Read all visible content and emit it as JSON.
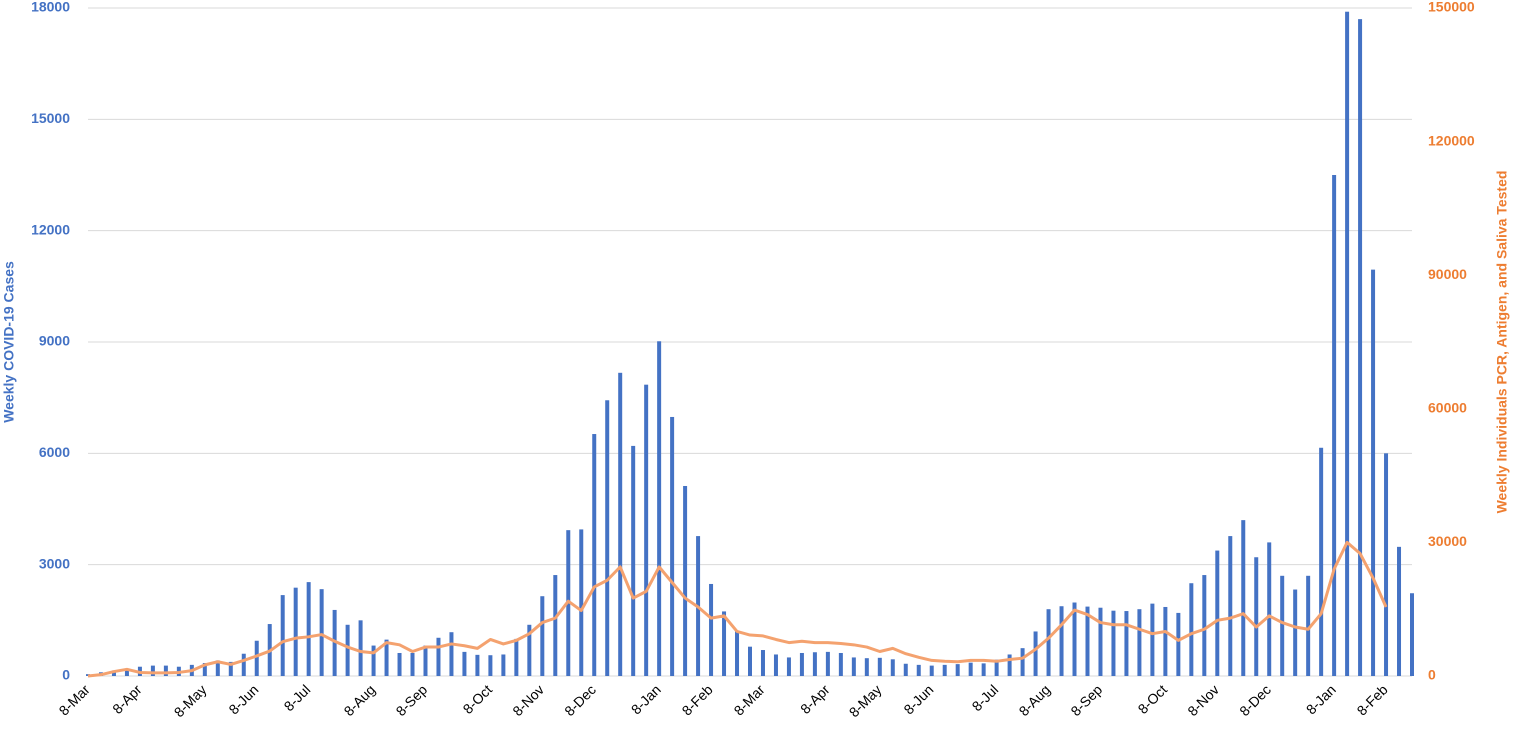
{
  "chart_data": {
    "type": "bar_line",
    "ylabel": "Weekly COVID-19 Cases",
    "y2label": "Weekly Individuals PCR, Antigen, and Saliva Tested",
    "categories": [
      "8-Mar",
      null,
      null,
      null,
      "8-Apr",
      null,
      null,
      null,
      null,
      "8-May",
      null,
      null,
      null,
      "8-Jun",
      null,
      null,
      null,
      "8-Jul",
      null,
      null,
      null,
      null,
      "8-Aug",
      null,
      null,
      null,
      "8-Sep",
      null,
      null,
      null,
      null,
      "8-Oct",
      null,
      null,
      null,
      "8-Nov",
      null,
      null,
      null,
      "8-Dec",
      null,
      null,
      null,
      null,
      "8-Jan",
      null,
      null,
      null,
      "8-Feb",
      null,
      null,
      null,
      "8-Mar",
      null,
      null,
      null,
      null,
      "8-Apr",
      null,
      null,
      null,
      "8-May",
      null,
      null,
      null,
      "8-Jun",
      null,
      null,
      null,
      null,
      "8-Jul",
      null,
      null,
      null,
      "8-Aug",
      null,
      null,
      null,
      "8-Sep",
      null,
      null,
      null,
      null,
      "8-Oct",
      null,
      null,
      null,
      "8-Nov",
      null,
      null,
      null,
      "8-Dec",
      null,
      null,
      null,
      null,
      "8-Jan",
      null,
      null,
      null,
      "8-Feb",
      null,
      null
    ],
    "series": [
      {
        "type": "bar",
        "color": "#4472c4",
        "values": [
          50,
          100,
          150,
          200,
          250,
          280,
          280,
          250,
          300,
          350,
          420,
          380,
          600,
          950,
          1400,
          2180,
          2380,
          2530,
          2340,
          1780,
          1380,
          1500,
          820,
          980,
          620,
          620,
          820,
          1030,
          1180,
          650,
          570,
          560,
          580,
          1000,
          1380,
          2150,
          2720,
          3930,
          3950,
          6520,
          7430,
          8170,
          6200,
          7850,
          9020,
          6980,
          5120,
          3770,
          2480,
          1740,
          1200,
          790,
          700,
          580,
          500,
          620,
          640,
          650,
          620,
          500,
          480,
          490,
          450,
          330,
          300,
          280,
          300,
          320,
          360,
          340,
          440,
          580,
          750,
          1200,
          1800,
          1880,
          1980,
          1870,
          1840,
          1760,
          1750,
          1800,
          1950,
          1860,
          1700,
          2500,
          2720,
          3380,
          3770,
          4200,
          3200,
          3600,
          2700,
          2330,
          2700,
          6150,
          13500,
          17900,
          17700,
          10950,
          6000,
          3480,
          2230
        ]
      },
      {
        "type": "line",
        "axis": "y2",
        "color": "#f4a26f",
        "values": [
          0,
          300,
          1000,
          1500,
          800,
          700,
          700,
          800,
          1200,
          2500,
          3200,
          2600,
          3500,
          4500,
          5600,
          7700,
          8500,
          8800,
          9300,
          7800,
          6500,
          5500,
          5200,
          7500,
          7000,
          5500,
          6500,
          6500,
          7200,
          6800,
          6200,
          8200,
          7200,
          8000,
          9500,
          12000,
          13000,
          16800,
          14700,
          20000,
          21500,
          24500,
          17500,
          19000,
          24500,
          21000,
          17500,
          15500,
          13000,
          13500,
          10000,
          9200,
          9000,
          8200,
          7500,
          7800,
          7500,
          7500,
          7300,
          7000,
          6500,
          5500,
          6200,
          5000,
          4200,
          3500,
          3300,
          3200,
          3500,
          3500,
          3300,
          3700,
          4000,
          6000,
          8500,
          11500,
          14800,
          13800,
          12000,
          11500,
          11500,
          10500,
          9500,
          10000,
          8000,
          9500,
          10500,
          12500,
          13000,
          14000,
          11000,
          13500,
          12000,
          11000,
          10500,
          14000,
          24000,
          30000,
          27500,
          22000,
          15500,
          null,
          null
        ]
      }
    ],
    "ylim": [
      0,
      18000
    ],
    "yticks": [
      0,
      3000,
      6000,
      9000,
      12000,
      15000,
      18000
    ],
    "y2lim": [
      0,
      150000
    ],
    "y2ticks": [
      0,
      30000,
      60000,
      90000,
      120000,
      150000
    ],
    "grid": true
  }
}
